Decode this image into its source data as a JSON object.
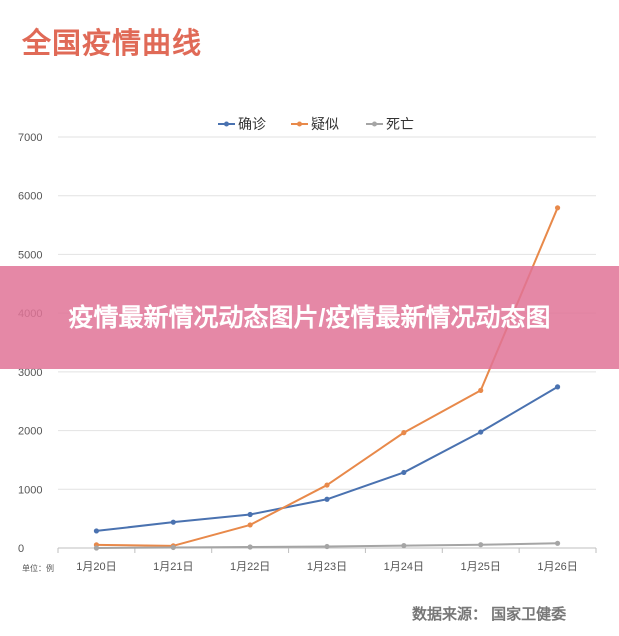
{
  "page_title": "全国疫情曲线",
  "overlay_text": "疫情最新情况动态图片/疫情最新情况动态图",
  "source_note": "数据来源： 国家卫健委",
  "unit_label": "单位：例",
  "colors": {
    "confirmed": "#4a72b0",
    "suspected": "#e8894a",
    "death": "#a5a5a5",
    "grid": "#e2e2e2",
    "title": "#e06a57"
  },
  "chart_data": {
    "type": "line",
    "title": "",
    "xlabel": "",
    "ylabel": "",
    "categories": [
      "1月20日",
      "1月21日",
      "1月22日",
      "1月23日",
      "1月24日",
      "1月25日",
      "1月26日"
    ],
    "ylim": [
      0,
      7000
    ],
    "yticks": [
      0,
      1000,
      2000,
      3000,
      4000,
      5000,
      6000,
      7000
    ],
    "grid": true,
    "legend_position": "top",
    "series": [
      {
        "name": "确诊",
        "color": "#4a72b0",
        "values": [
          291,
          440,
          571,
          830,
          1287,
          1975,
          2744
        ]
      },
      {
        "name": "疑似",
        "color": "#e8894a",
        "values": [
          54,
          37,
          393,
          1072,
          1965,
          2684,
          5794
        ]
      },
      {
        "name": "死亡",
        "color": "#a5a5a5",
        "values": [
          0,
          9,
          17,
          25,
          41,
          56,
          80
        ]
      }
    ]
  }
}
